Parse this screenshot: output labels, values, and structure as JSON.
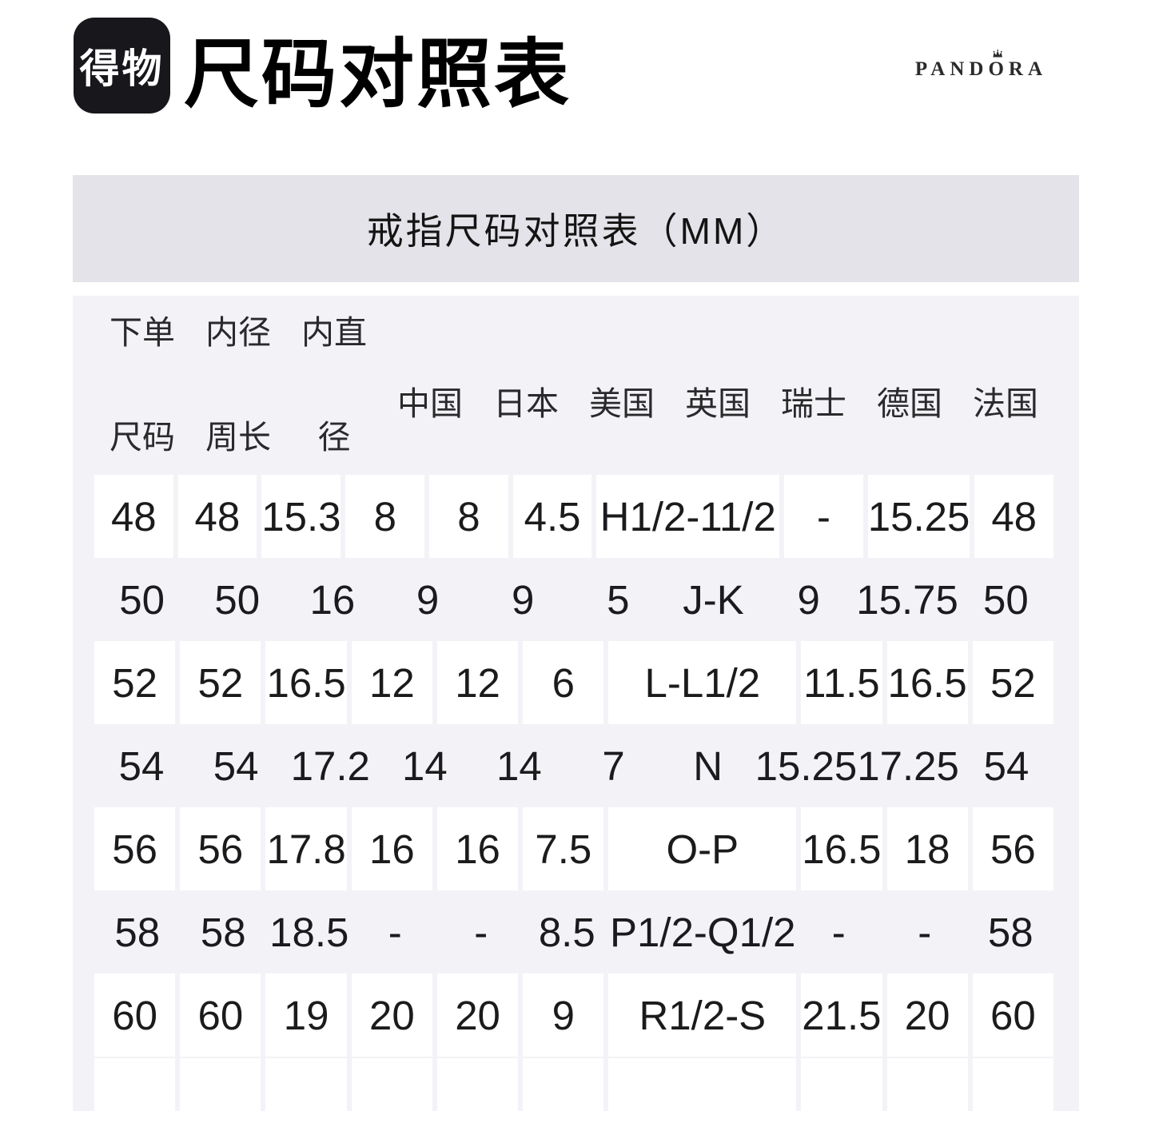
{
  "header": {
    "logo_text": "得物",
    "title": "尺码对照表",
    "brand": {
      "name": "PANDORA",
      "pre": "PAND",
      "o_letter": "O",
      "post": "RA"
    }
  },
  "banner": {
    "title": "戒指尺码对照表（MM）"
  },
  "table": {
    "columns": [
      {
        "top": "下单",
        "bottom": "尺码"
      },
      {
        "top": "内径",
        "bottom": "周长"
      },
      {
        "top": "内直",
        "bottom": "径"
      },
      {
        "label": "中国"
      },
      {
        "label": "日本"
      },
      {
        "label": "美国"
      },
      {
        "label": "英国"
      },
      {
        "label": "瑞士"
      },
      {
        "label": "德国"
      },
      {
        "label": "法国"
      }
    ],
    "rows": [
      [
        "48",
        "48",
        "15.3",
        "8",
        "8",
        "4.5",
        "H1/2-11/2",
        "-",
        "15.25",
        "48"
      ],
      [
        "50",
        "50",
        "16",
        "9",
        "9",
        "5",
        "J-K",
        "9",
        "15.75",
        "50"
      ],
      [
        "52",
        "52",
        "16.5",
        "12",
        "12",
        "6",
        "L-L1/2",
        "11.5",
        "16.5",
        "52"
      ],
      [
        "54",
        "54",
        "17.2",
        "14",
        "14",
        "7",
        "N",
        "15.25",
        "17.25",
        "54"
      ],
      [
        "56",
        "56",
        "17.8",
        "16",
        "16",
        "7.5",
        "O-P",
        "16.5",
        "18",
        "56"
      ],
      [
        "58",
        "58",
        "18.5",
        "-",
        "-",
        "8.5",
        "P1/2-Q1/2",
        "-",
        "-",
        "58"
      ],
      [
        "60",
        "60",
        "19",
        "20",
        "20",
        "9",
        "R1/2-S",
        "21.5",
        "20",
        "60"
      ]
    ]
  },
  "colors": {
    "logo_bg": "#17171c",
    "banner_bg": "#e4e3e9",
    "table_bg": "#f3f3f7",
    "cell_bg": "#ffffff",
    "text": "#1b1b1d"
  }
}
